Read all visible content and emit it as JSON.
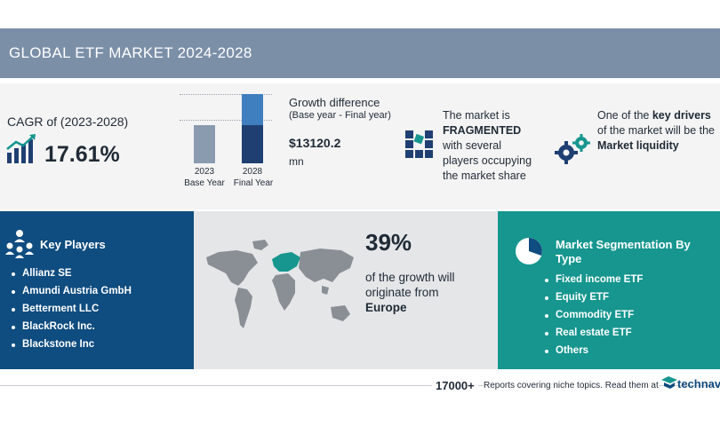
{
  "header": {
    "title": "GLOBAL ETF MARKET 2024-2028"
  },
  "cagr": {
    "label": "CAGR of (2023-2028)",
    "value": "17.61%"
  },
  "growth": {
    "bars": [
      {
        "year": "2023",
        "label": "Base Year",
        "relative_height": 0.55
      },
      {
        "year": "2028",
        "label": "Final Year",
        "relative_height": 1.0
      }
    ],
    "title": "Growth difference",
    "subtitle": "(Base year - Final year)",
    "amount": "$13120.2",
    "unit": "mn"
  },
  "market": {
    "line1": "The market is",
    "line2": "FRAGMENTED",
    "line3": "with several",
    "line4": "players occupying",
    "line5": "the market share"
  },
  "drivers": {
    "line1a": "One of the ",
    "line1b": "key drivers",
    "line2": "of the market will be the",
    "line3": "Market liquidity"
  },
  "key_players": {
    "title": "Key Players",
    "items": [
      "Allianz SE",
      "Amundi Austria GmbH",
      "Betterment LLC",
      "BlackRock Inc.",
      "Blackstone Inc"
    ]
  },
  "growth_region": {
    "percent": "39%",
    "line1": "of the growth will",
    "line2": "originate from",
    "region": "Europe"
  },
  "segmentation": {
    "title_line1": "Market Segmentation By",
    "title_line2": "Type",
    "items": [
      "Fixed income ETF",
      "Equity ETF",
      "Commodity ETF",
      "Real estate ETF",
      "Others"
    ]
  },
  "footer": {
    "count": "17000+",
    "text": "Reports covering niche topics. Read them at",
    "brand": "technavio"
  },
  "colors": {
    "header": "#7b8fa7",
    "navy": "#0f4c7f",
    "teal": "#16968f",
    "bar_base": "#8a9bb0",
    "bar_final": "#1f3f72"
  }
}
